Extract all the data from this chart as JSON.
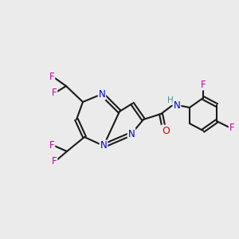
{
  "background_color": "#ebebeb",
  "bond_color": "#1a1a1a",
  "atom_colors": {
    "N": "#0000cc",
    "F": "#cc00aa",
    "O": "#cc0000",
    "H": "#4a9090",
    "C": "#1a1a1a"
  },
  "figsize": [
    3.0,
    3.0
  ],
  "dpi": 100
}
